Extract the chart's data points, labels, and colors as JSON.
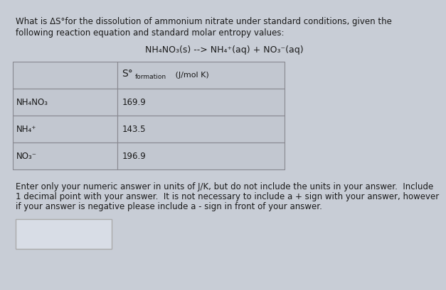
{
  "title_line1": "What is ΔS°for the dissolution of ammonium nitrate under standard conditions, given the",
  "title_line2": "following reaction equation and standard molar entropy values:",
  "equation_display": "NH₄NO₃(s) --> NH₄⁺(aq) + NO₃⁻(aq)",
  "rows": [
    [
      "NH₄NO₃",
      "169.9"
    ],
    [
      "NH₄⁺",
      "143.5"
    ],
    [
      "NO₃⁻",
      "196.9"
    ]
  ],
  "footer_line1": "Enter only your numeric answer in units of J/K, but do not include the units in your answer.  Include",
  "footer_line2": "1 decimal point with your answer.  It is not necessary to include a + sign with your answer, however",
  "footer_line3": "if your answer is negative please include a - sign in front of your answer.",
  "bg_color": "#c8cdd6",
  "table_bg": "#c2c7d0",
  "table_border": "#888890",
  "text_color": "#1a1a1a",
  "answer_box_color": "#d8dde6",
  "answer_box_border": "#aaaaaa"
}
